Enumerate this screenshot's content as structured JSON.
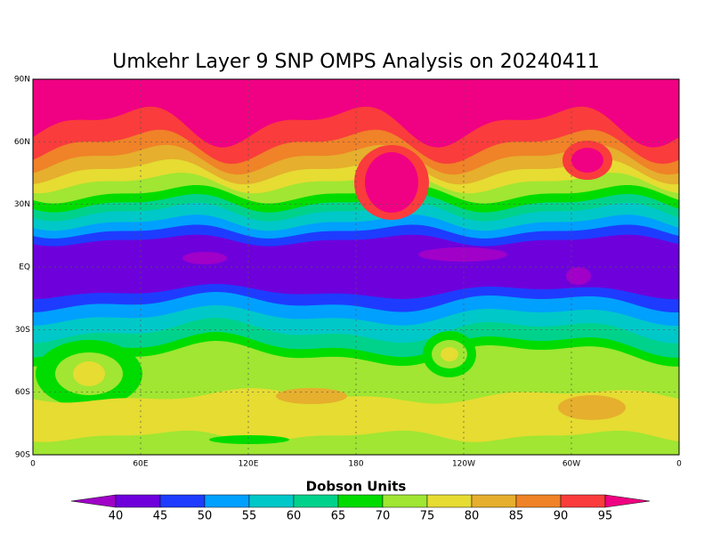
{
  "title": "Umkehr Layer 9 SNP OMPS Analysis on 20240411",
  "map": {
    "lat_ticks": [
      "90N",
      "60N",
      "30N",
      "EQ",
      "30S",
      "60S",
      "90S"
    ],
    "lon_ticks": [
      "0",
      "60E",
      "120E",
      "180",
      "120W",
      "60W",
      "0"
    ]
  },
  "colorbar": {
    "label": "Dobson Units",
    "levels": [
      40,
      45,
      50,
      55,
      60,
      65,
      70,
      75,
      80,
      85,
      90,
      95
    ],
    "colors": [
      "#a000c8",
      "#6e00dc",
      "#1e3cff",
      "#00a0ff",
      "#00c8c8",
      "#00d28c",
      "#00dc00",
      "#a0e632",
      "#e6dc32",
      "#e6af2d",
      "#f08228",
      "#fa3c3c",
      "#f00082"
    ]
  }
}
